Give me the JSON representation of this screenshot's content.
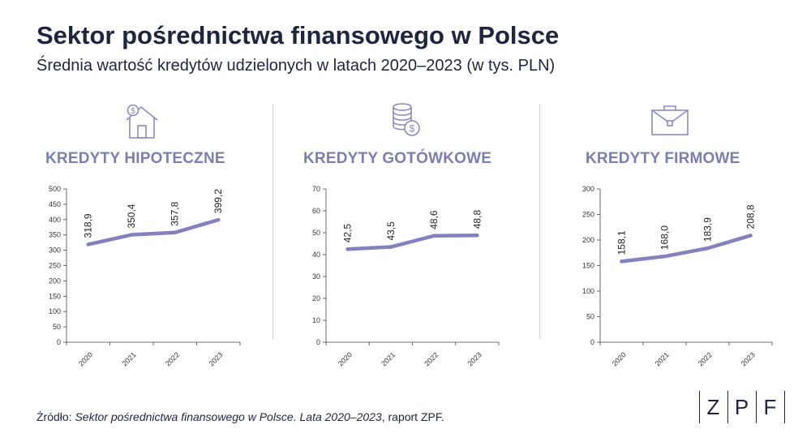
{
  "header": {
    "title": "Sektor pośrednictwa finansowego w Polsce",
    "subtitle": "Średnia wartość kredytów udzielonych w latach 2020–2023 (w tys. PLN)"
  },
  "colors": {
    "accent": "#7b7eb6",
    "line": "#8482bd",
    "text": "#1f2540",
    "icon": "#8a8cc0"
  },
  "source": {
    "prefix": "Źródło: ",
    "italic": "Sektor pośrednictwa finansowego w Polsce. Lata 2020–2023",
    "suffix": ", raport ZPF."
  },
  "logo": {
    "letters": [
      "Z",
      "P",
      "F"
    ]
  },
  "panels": [
    {
      "title": "KREDYTY HIPOTECZNE",
      "icon": "house-dollar-icon"
    },
    {
      "title": "KREDYTY GOTÓWKOWE",
      "icon": "coins-dollar-icon"
    },
    {
      "title": "KREDYTY FIRMOWE",
      "icon": "briefcase-icon"
    }
  ],
  "chart_data": [
    {
      "type": "line",
      "title": "KREDYTY HIPOTECZNE",
      "categories": [
        "2020",
        "2021",
        "2022",
        "2023"
      ],
      "values": [
        318.9,
        350.4,
        357.8,
        399.2
      ],
      "value_labels": [
        "318,9",
        "350,4",
        "357,8",
        "399,2"
      ],
      "ylim": [
        0,
        500
      ],
      "yticks": [
        0,
        50,
        100,
        150,
        200,
        250,
        300,
        350,
        400,
        450,
        500
      ],
      "grid": false
    },
    {
      "type": "line",
      "title": "KREDYTY GOTÓWKOWE",
      "categories": [
        "2020",
        "2021",
        "2022",
        "2023"
      ],
      "values": [
        42.5,
        43.5,
        48.6,
        48.8
      ],
      "value_labels": [
        "42,5",
        "43,5",
        "48,6",
        "48,8"
      ],
      "ylim": [
        0,
        70
      ],
      "yticks": [
        0,
        10,
        20,
        30,
        40,
        50,
        60,
        70
      ],
      "grid": false
    },
    {
      "type": "line",
      "title": "KREDYTY FIRMOWE",
      "categories": [
        "2020",
        "2021",
        "2022",
        "2023"
      ],
      "values": [
        158.1,
        168.0,
        183.9,
        208.8
      ],
      "value_labels": [
        "158,1",
        "168,0",
        "183,9",
        "208,8"
      ],
      "ylim": [
        0,
        300
      ],
      "yticks": [
        0,
        50,
        100,
        150,
        200,
        250,
        300
      ],
      "grid": false
    }
  ]
}
